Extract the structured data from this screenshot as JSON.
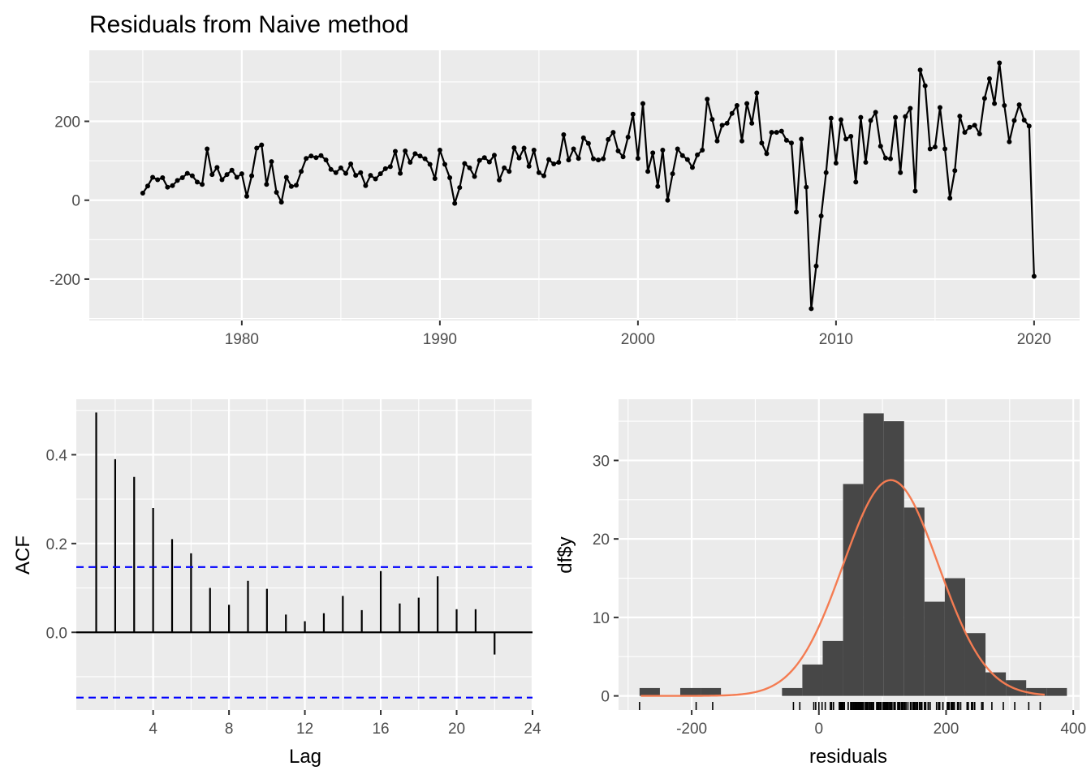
{
  "figure": {
    "title": "Residuals from Naive method"
  },
  "chart_data": [
    {
      "type": "line",
      "title": "Residuals from Naive method",
      "xlabel": "",
      "ylabel": "",
      "frequency": "quarterly",
      "start": 1975.0,
      "xlim": [
        1972.3,
        2022.3
      ],
      "ylim": [
        -305,
        380
      ],
      "xticks": [
        1980,
        1990,
        2000,
        2010,
        2020
      ],
      "xtick_labels": [
        "1980",
        "1990",
        "2000",
        "2010",
        "2020"
      ],
      "yticks": [
        -200,
        0,
        200
      ],
      "ytick_labels": [
        "-200",
        "0",
        "200"
      ],
      "grid": true,
      "color": "#000000",
      "values": [
        18,
        36,
        58,
        52,
        57,
        33,
        37,
        50,
        57,
        68,
        62,
        46,
        40,
        130,
        65,
        83,
        52,
        65,
        76,
        58,
        67,
        10,
        62,
        132,
        140,
        40,
        98,
        20,
        -5,
        58,
        35,
        38,
        73,
        106,
        112,
        108,
        113,
        102,
        78,
        70,
        82,
        68,
        92,
        63,
        70,
        37,
        63,
        54,
        67,
        80,
        85,
        124,
        68,
        125,
        96,
        118,
        112,
        105,
        91,
        55,
        127,
        91,
        57,
        -8,
        32,
        93,
        82,
        60,
        101,
        108,
        97,
        114,
        51,
        82,
        73,
        133,
        107,
        132,
        86,
        127,
        70,
        62,
        103,
        92,
        96,
        166,
        102,
        130,
        106,
        158,
        144,
        105,
        102,
        105,
        154,
        172,
        125,
        110,
        160,
        218,
        106,
        245,
        73,
        120,
        35,
        127,
        0,
        67,
        130,
        113,
        103,
        83,
        115,
        127,
        256,
        205,
        150,
        190,
        195,
        220,
        240,
        150,
        245,
        195,
        272,
        145,
        118,
        172,
        172,
        175,
        152,
        145,
        -30,
        155,
        33,
        -275,
        -167,
        -40,
        70,
        208,
        94,
        204,
        155,
        162,
        46,
        210,
        96,
        202,
        223,
        137,
        107,
        105,
        210,
        70,
        212,
        233,
        23,
        330,
        290,
        130,
        135,
        235,
        130,
        5,
        75,
        213,
        172,
        185,
        190,
        168,
        258,
        308,
        245,
        348,
        240,
        148,
        202,
        242,
        203,
        188,
        -193
      ]
    },
    {
      "type": "bar",
      "title": "",
      "xlabel": "Lag",
      "ylabel": "ACF",
      "xlim": [
        -0.05,
        24
      ],
      "ylim": [
        -0.175,
        0.525
      ],
      "xticks": [
        4,
        8,
        12,
        16,
        20,
        24
      ],
      "xtick_labels": [
        "4",
        "8",
        "12",
        "16",
        "20",
        "24"
      ],
      "yticks": [
        0.0,
        0.2,
        0.4
      ],
      "ytick_labels": [
        "0.0",
        "0.2",
        "0.4"
      ],
      "grid": true,
      "lags": [
        1,
        2,
        3,
        4,
        5,
        6,
        7,
        8,
        9,
        10,
        11,
        12,
        13,
        14,
        15,
        16,
        17,
        18,
        19,
        20,
        21,
        22
      ],
      "values": [
        0.495,
        0.39,
        0.35,
        0.28,
        0.21,
        0.178,
        0.1,
        0.062,
        0.116,
        0.098,
        0.04,
        0.025,
        0.043,
        0.082,
        0.05,
        0.138,
        0.065,
        0.078,
        0.126,
        0.052,
        0.052,
        -0.05
      ],
      "conf_limit": 0.147,
      "conf_color": "#0000ff",
      "bar_color": "#000000"
    },
    {
      "type": "bar",
      "title": "",
      "xlabel": "residuals",
      "ylabel": "df$y",
      "xlim": [
        -315,
        410
      ],
      "ylim": [
        -1.8,
        37.8
      ],
      "xticks": [
        -200,
        0,
        200,
        400
      ],
      "xtick_labels": [
        "-200",
        "0",
        "200",
        "400"
      ],
      "yticks": [
        0,
        10,
        20,
        30
      ],
      "ytick_labels": [
        "0",
        "10",
        "20",
        "30"
      ],
      "grid": true,
      "bin_edges": [
        -282,
        -250,
        -218,
        -186,
        -154,
        -122,
        -90,
        -58,
        -26,
        6,
        38,
        70,
        102,
        134,
        166,
        198,
        230,
        262,
        294,
        326,
        358,
        390
      ],
      "counts": [
        1,
        0,
        1,
        1,
        0,
        0,
        0,
        1,
        4,
        7,
        27,
        36,
        35,
        24,
        12,
        15,
        8,
        3,
        2,
        1,
        1
      ],
      "bar_color": "#474747",
      "density_curve": {
        "color": "#f47c52",
        "mean": 113,
        "sd": 75,
        "peak": 27.5,
        "x_range": [
          -280,
          355
        ]
      },
      "rug": [
        -282,
        -193,
        -167,
        -40,
        -30,
        -8,
        -5,
        0,
        5,
        10,
        18,
        20,
        23,
        32,
        33,
        33,
        35,
        35,
        36,
        37,
        37,
        38,
        40,
        40,
        46,
        46,
        50,
        51,
        52,
        52,
        54,
        55,
        57,
        57,
        57,
        58,
        58,
        58,
        60,
        62,
        62,
        63,
        63,
        65,
        65,
        67,
        67,
        68,
        68,
        70,
        70,
        70,
        73,
        73,
        75,
        76,
        78,
        80,
        82,
        82,
        83,
        83,
        85,
        86,
        91,
        91,
        92,
        92,
        93,
        94,
        96,
        96,
        97,
        98,
        101,
        102,
        102,
        103,
        103,
        105,
        105,
        105,
        106,
        106,
        106,
        107,
        107,
        108,
        108,
        110,
        112,
        112,
        113,
        113,
        114,
        115,
        118,
        118,
        120,
        124,
        125,
        125,
        127,
        127,
        127,
        130,
        130,
        130,
        130,
        132,
        132,
        133,
        135,
        137,
        140,
        144,
        145,
        145,
        148,
        150,
        150,
        152,
        154,
        155,
        155,
        158,
        160,
        162,
        166,
        168,
        172,
        172,
        172,
        175,
        185,
        188,
        190,
        190,
        195,
        195,
        202,
        202,
        203,
        204,
        205,
        208,
        210,
        210,
        212,
        213,
        218,
        220,
        223,
        233,
        235,
        240,
        240,
        242,
        245,
        245,
        245,
        256,
        258,
        272,
        290,
        308,
        330,
        348
      ]
    }
  ]
}
